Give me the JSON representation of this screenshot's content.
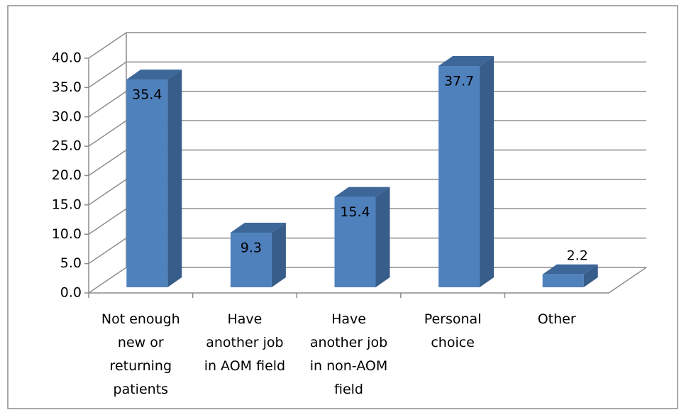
{
  "chart_data": {
    "type": "bar3d",
    "categories": [
      "Not enough new or returning patients",
      "Have another job in AOM field",
      "Have another job in non-AOM field",
      "Personal choice",
      "Other"
    ],
    "values": [
      35.4,
      9.3,
      15.4,
      37.7,
      2.2
    ],
    "color": "#4f81bd",
    "ylim": [
      0,
      40
    ],
    "yticks": [
      {
        "value": 0,
        "label": "0.0"
      },
      {
        "value": 5,
        "label": "5.0"
      },
      {
        "value": 10,
        "label": "10.0"
      },
      {
        "value": 15,
        "label": "15.0"
      },
      {
        "value": 20,
        "label": "20.0"
      },
      {
        "value": 25,
        "label": "25.0"
      },
      {
        "value": 30,
        "label": "30.0"
      },
      {
        "value": 35,
        "label": "35.0"
      },
      {
        "value": 40,
        "label": "40.0"
      }
    ],
    "grid": true
  }
}
